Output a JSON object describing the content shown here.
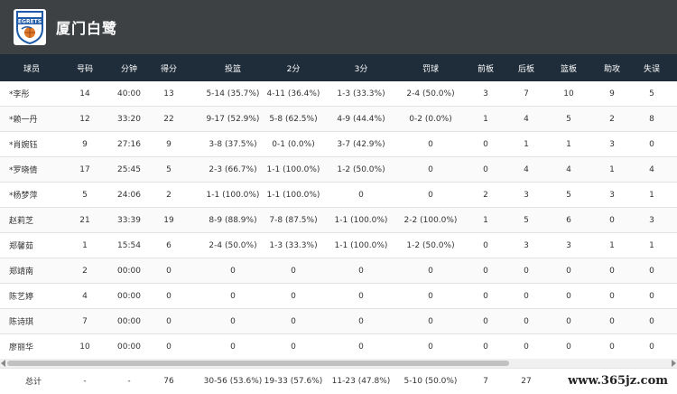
{
  "team": {
    "name": "厦门白鹭",
    "logo_text": "EGRETS"
  },
  "columns": [
    "球员",
    "号码",
    "分钟",
    "得分",
    "投篮",
    "2分",
    "3分",
    "罚球",
    "前板",
    "后板",
    "篮板",
    "助攻",
    "失误"
  ],
  "players": [
    [
      "*李彤",
      "14",
      "40:00",
      "13",
      "5-14 (35.7%)",
      "4-11 (36.4%)",
      "1-3 (33.3%)",
      "2-4 (50.0%)",
      "3",
      "7",
      "10",
      "9",
      "5"
    ],
    [
      "*赖一丹",
      "12",
      "33:20",
      "22",
      "9-17 (52.9%)",
      "5-8 (62.5%)",
      "4-9 (44.4%)",
      "0-2 (0.0%)",
      "1",
      "4",
      "5",
      "2",
      "8"
    ],
    [
      "*肖婉钰",
      "9",
      "27:16",
      "9",
      "3-8 (37.5%)",
      "0-1 (0.0%)",
      "3-7 (42.9%)",
      "0",
      "0",
      "1",
      "1",
      "3",
      "0"
    ],
    [
      "*罗晓倩",
      "17",
      "25:45",
      "5",
      "2-3 (66.7%)",
      "1-1 (100.0%)",
      "1-2 (50.0%)",
      "0",
      "0",
      "4",
      "4",
      "1",
      "4"
    ],
    [
      "*杨梦萍",
      "5",
      "24:06",
      "2",
      "1-1 (100.0%)",
      "1-1 (100.0%)",
      "0",
      "0",
      "2",
      "3",
      "5",
      "3",
      "1"
    ],
    [
      "赵莉芝",
      "21",
      "33:39",
      "19",
      "8-9 (88.9%)",
      "7-8 (87.5%)",
      "1-1 (100.0%)",
      "2-2 (100.0%)",
      "1",
      "5",
      "6",
      "0",
      "3"
    ],
    [
      "郑馨茹",
      "1",
      "15:54",
      "6",
      "2-4 (50.0%)",
      "1-3 (33.3%)",
      "1-1 (100.0%)",
      "1-2 (50.0%)",
      "0",
      "3",
      "3",
      "1",
      "1"
    ],
    [
      "郑靖南",
      "2",
      "00:00",
      "0",
      "0",
      "0",
      "0",
      "0",
      "0",
      "0",
      "0",
      "0",
      "0"
    ],
    [
      "陈艺婷",
      "4",
      "00:00",
      "0",
      "0",
      "0",
      "0",
      "0",
      "0",
      "0",
      "0",
      "0",
      "0"
    ],
    [
      "陈诗琪",
      "7",
      "00:00",
      "0",
      "0",
      "0",
      "0",
      "0",
      "0",
      "0",
      "0",
      "0",
      "0"
    ],
    [
      "廖丽华",
      "10",
      "00:00",
      "0",
      "0",
      "0",
      "0",
      "0",
      "0",
      "0",
      "0",
      "0",
      "0"
    ]
  ],
  "total": [
    "总计",
    "-",
    "-",
    "76",
    "30-56 (53.6%)",
    "19-33 (57.6%)",
    "11-23 (47.8%)",
    "5-10 (50.0%)",
    "7",
    "27",
    "",
    "",
    ""
  ],
  "watermark": "www.365jz.com"
}
